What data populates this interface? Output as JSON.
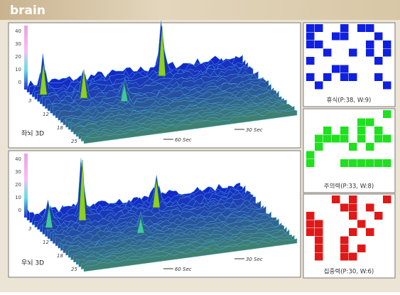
{
  "header": {
    "title": "brain"
  },
  "plots": [
    {
      "label": "좌뇌 3D",
      "z_ticks": [
        "40",
        "30",
        "20",
        "10",
        "0"
      ],
      "depth_ticks": [
        "3",
        "12",
        "18",
        "25"
      ],
      "time_ticks": [
        "60 Sec",
        "30 Sec"
      ]
    },
    {
      "label": "우뇌 3D",
      "z_ticks": [
        "40",
        "30",
        "20",
        "10",
        "0"
      ],
      "depth_ticks": [
        "3",
        "12",
        "18",
        "25"
      ],
      "time_ticks": [
        "60 Sec",
        "30 Sec"
      ]
    }
  ],
  "panels": [
    {
      "label": "휴식(P:38, W:9)"
    },
    {
      "label": "주의력(P:33, W:8)"
    },
    {
      "label": "집중력(P:30, W:6)"
    }
  ]
}
